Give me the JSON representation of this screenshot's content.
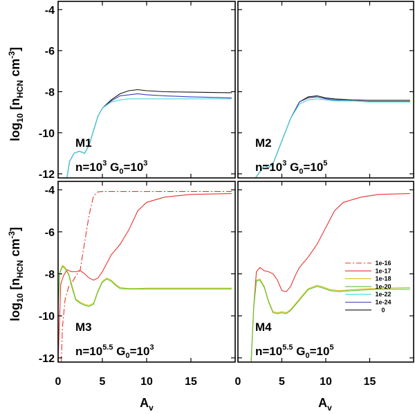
{
  "chart_data": {
    "type": "line",
    "layout": "2x2 shared axes",
    "ylabel": "log10 [nHCN cm-3]",
    "xlabel": "Av",
    "xlim": [
      0,
      20
    ],
    "ylim_top": [
      -12.2,
      -3.6
    ],
    "ylim_bottom": [
      -12.2,
      -3.6
    ],
    "xticks": [
      0,
      5,
      10,
      15
    ],
    "yticks_top": [
      -4,
      -6,
      -8,
      -10,
      -12
    ],
    "yticks_bottom": [
      -4,
      -6,
      -8,
      -10,
      -12
    ],
    "legend_position": "bottom-right panel, right side",
    "legend": [
      {
        "label": "1e-16",
        "color": "#e8332e",
        "dash": "dashdot"
      },
      {
        "label": "1e-17",
        "color": "#e8332e",
        "dash": "solid"
      },
      {
        "label": "1e-18",
        "color": "#d8c010",
        "dash": "solid"
      },
      {
        "label": "1e-20",
        "color": "#5cc13a",
        "dash": "solid"
      },
      {
        "label": "1e-22",
        "color": "#3ed8d8",
        "dash": "solid"
      },
      {
        "label": "1e-24",
        "color": "#3c3cbe",
        "dash": "solid"
      },
      {
        "label": "0",
        "color": "#111111",
        "dash": "solid"
      }
    ],
    "panels": [
      {
        "id": "M1",
        "name": "M1",
        "n_label": "n=10",
        "n_exp": "3",
        "g_label": "G",
        "g_sub": "0",
        "g_eq": "=10",
        "g_exp": "3",
        "series": [
          {
            "name": "0",
            "color": "#111111",
            "dash": "solid",
            "x": [
              1.0,
              1.3,
              1.8,
              2.4,
              3.0,
              3.5,
              4.0,
              4.5,
              5.0,
              6.0,
              7.0,
              8.0,
              9.0,
              10,
              12,
              15,
              18,
              19.6
            ],
            "y": [
              -12.2,
              -11.4,
              -11.0,
              -10.9,
              -11.0,
              -10.6,
              -9.9,
              -9.2,
              -8.8,
              -8.4,
              -8.1,
              -7.95,
              -7.9,
              -7.95,
              -8.0,
              -8.02,
              -8.04,
              -8.05
            ]
          },
          {
            "name": "1e-24",
            "color": "#3c3cbe",
            "dash": "solid",
            "x": [
              1.0,
              1.3,
              1.8,
              2.4,
              3.0,
              3.5,
              4.0,
              4.5,
              5.0,
              6.0,
              7.0,
              8.0,
              9.0,
              10,
              12,
              15,
              18,
              19.6
            ],
            "y": [
              -12.2,
              -11.4,
              -11.0,
              -10.9,
              -11.0,
              -10.6,
              -9.9,
              -9.2,
              -8.8,
              -8.45,
              -8.2,
              -8.15,
              -8.1,
              -8.15,
              -8.2,
              -8.25,
              -8.28,
              -8.3
            ]
          },
          {
            "name": "1e-22",
            "color": "#3ed8d8",
            "dash": "solid",
            "x": [
              1.0,
              1.3,
              1.8,
              2.4,
              3.0,
              3.5,
              4.0,
              4.5,
              5.0,
              6.0,
              7.0,
              8.0,
              9.0,
              10,
              12,
              15,
              18,
              19.6
            ],
            "y": [
              -12.2,
              -11.4,
              -11.0,
              -10.9,
              -11.0,
              -10.6,
              -9.9,
              -9.2,
              -8.8,
              -8.5,
              -8.4,
              -8.35,
              -8.35,
              -8.35,
              -8.35,
              -8.35,
              -8.35,
              -8.35
            ]
          }
        ]
      },
      {
        "id": "M2",
        "name": "M2",
        "n_label": "n=10",
        "n_exp": "3",
        "g_label": "G",
        "g_sub": "0",
        "g_eq": "=10",
        "g_exp": "5",
        "series": [
          {
            "name": "0",
            "color": "#111111",
            "dash": "solid",
            "x": [
              2.0,
              2.5,
              3.0,
              3.5,
              4.0,
              5.0,
              6.0,
              7.0,
              8.0,
              9.0,
              10,
              11,
              13,
              15,
              17,
              19.6
            ],
            "y": [
              -12.2,
              -11.9,
              -11.6,
              -11.7,
              -11.5,
              -10.4,
              -9.3,
              -8.5,
              -8.25,
              -8.2,
              -8.3,
              -8.35,
              -8.4,
              -8.42,
              -8.42,
              -8.42
            ]
          },
          {
            "name": "1e-24",
            "color": "#3c3cbe",
            "dash": "solid",
            "x": [
              2.0,
              2.5,
              3.0,
              3.5,
              4.0,
              5.0,
              6.0,
              7.0,
              8.0,
              9.0,
              10,
              11,
              13,
              15,
              17,
              19.6
            ],
            "y": [
              -12.2,
              -11.9,
              -11.6,
              -11.7,
              -11.5,
              -10.4,
              -9.3,
              -8.5,
              -8.3,
              -8.25,
              -8.35,
              -8.4,
              -8.45,
              -8.48,
              -8.48,
              -8.48
            ]
          },
          {
            "name": "1e-22",
            "color": "#3ed8d8",
            "dash": "solid",
            "x": [
              2.0,
              2.5,
              3.0,
              3.5,
              4.0,
              5.0,
              6.0,
              7.0,
              8.0,
              9.0,
              10,
              11,
              13,
              15,
              17,
              19.6
            ],
            "y": [
              -12.2,
              -11.9,
              -11.6,
              -11.7,
              -11.5,
              -10.4,
              -9.3,
              -8.6,
              -8.4,
              -8.35,
              -8.4,
              -8.45,
              -8.45,
              -8.5,
              -8.5,
              -8.5
            ]
          }
        ]
      },
      {
        "id": "M3",
        "name": "M3",
        "n_label": "n=10",
        "n_exp": "5.5",
        "g_label": "G",
        "g_sub": "0",
        "g_eq": "=10",
        "g_exp": "3",
        "series": [
          {
            "name": "1e-16",
            "color": "#e8332e",
            "dash": "dashdot",
            "x": [
              0.35,
              0.5,
              0.8,
              1.2,
              1.6,
              2.0,
              2.5,
              3.0,
              3.5,
              4.0,
              4.5,
              5.0,
              6.0,
              8.0,
              12,
              16,
              19.6
            ],
            "y": [
              -12.2,
              -10.5,
              -9.2,
              -8.6,
              -8.4,
              -8.1,
              -7.8,
              -6.5,
              -5.2,
              -4.3,
              -4.1,
              -4.08,
              -4.08,
              -4.08,
              -4.08,
              -4.08,
              -4.08
            ]
          },
          {
            "name": "1e-17",
            "color": "#e8332e",
            "dash": "solid",
            "x": [
              0.0,
              0.3,
              0.6,
              1.0,
              1.5,
              2.0,
              2.5,
              3.0,
              3.5,
              4.0,
              4.5,
              5.0,
              5.5,
              6.0,
              7.0,
              8.0,
              9.0,
              10,
              12,
              15,
              19.6
            ],
            "y": [
              -12.2,
              -8.5,
              -8.1,
              -7.8,
              -7.9,
              -7.9,
              -7.85,
              -8.0,
              -8.2,
              -8.3,
              -8.2,
              -7.9,
              -7.5,
              -7.1,
              -6.6,
              -5.9,
              -5.0,
              -4.6,
              -4.35,
              -4.22,
              -4.18
            ]
          },
          {
            "name": "1e-18",
            "color": "#d8c010",
            "dash": "solid",
            "x": [
              0.0,
              0.2,
              0.5,
              0.8,
              1.2,
              1.6,
              2.0,
              2.5,
              3.0,
              3.5,
              4.0,
              4.5,
              5.0,
              5.5,
              6.0,
              6.5,
              7.0,
              8.0,
              9.0,
              10,
              12,
              15,
              19.6
            ],
            "y": [
              -9.5,
              -7.9,
              -7.6,
              -7.7,
              -8.0,
              -8.6,
              -9.2,
              -9.35,
              -9.45,
              -9.5,
              -9.4,
              -8.8,
              -8.35,
              -8.2,
              -8.3,
              -8.5,
              -8.65,
              -8.7,
              -8.7,
              -8.68,
              -8.68,
              -8.68,
              -8.68
            ]
          },
          {
            "name": "1e-20",
            "color": "#5cc13a",
            "dash": "solid",
            "x": [
              0.0,
              0.2,
              0.5,
              0.8,
              1.2,
              1.6,
              2.0,
              2.5,
              3.0,
              3.5,
              4.0,
              4.5,
              5.0,
              5.5,
              6.0,
              6.5,
              7.0,
              8.0,
              9.0,
              10,
              12,
              15,
              19.6
            ],
            "y": [
              -9.6,
              -7.95,
              -7.65,
              -7.75,
              -8.05,
              -8.7,
              -9.25,
              -9.4,
              -9.5,
              -9.55,
              -9.45,
              -8.85,
              -8.4,
              -8.25,
              -8.35,
              -8.55,
              -8.7,
              -8.72,
              -8.72,
              -8.72,
              -8.72,
              -8.72,
              -8.72
            ]
          }
        ]
      },
      {
        "id": "M4",
        "name": "M4",
        "n_label": "n=10",
        "n_exp": "5.5",
        "g_label": "G",
        "g_sub": "0",
        "g_eq": "=10",
        "g_exp": "5",
        "series": [
          {
            "name": "1e-17",
            "color": "#e8332e",
            "dash": "solid",
            "x": [
              1.5,
              1.8,
              2.1,
              2.5,
              3.0,
              3.5,
              4.0,
              4.5,
              5.0,
              5.5,
              6.0,
              6.5,
              7.0,
              8.0,
              9.0,
              10,
              11,
              12,
              14,
              16,
              19.6
            ],
            "y": [
              -12.2,
              -9.5,
              -7.9,
              -7.7,
              -7.85,
              -7.9,
              -8.0,
              -8.3,
              -8.8,
              -8.85,
              -8.6,
              -8.1,
              -7.7,
              -7.2,
              -6.6,
              -5.8,
              -5.0,
              -4.6,
              -4.35,
              -4.22,
              -4.18
            ]
          },
          {
            "name": "1e-18",
            "color": "#d8c010",
            "dash": "solid",
            "x": [
              1.5,
              1.8,
              2.1,
              2.5,
              3.0,
              3.5,
              4.0,
              4.5,
              5.0,
              5.5,
              6.0,
              7.0,
              8.0,
              9.0,
              9.5,
              10.5,
              11.5,
              13,
              15,
              19.6
            ],
            "y": [
              -12.2,
              -9.5,
              -8.3,
              -8.25,
              -8.6,
              -9.3,
              -9.8,
              -9.85,
              -9.8,
              -9.85,
              -9.7,
              -9.2,
              -8.7,
              -8.55,
              -8.6,
              -8.75,
              -8.8,
              -8.75,
              -8.7,
              -8.65
            ]
          },
          {
            "name": "1e-20",
            "color": "#5cc13a",
            "dash": "solid",
            "x": [
              1.5,
              1.8,
              2.1,
              2.5,
              3.0,
              3.5,
              4.0,
              4.5,
              5.0,
              5.5,
              6.0,
              7.0,
              8.0,
              9.0,
              9.5,
              10.5,
              11.5,
              13,
              15,
              19.6
            ],
            "y": [
              -12.2,
              -9.6,
              -8.35,
              -8.3,
              -8.65,
              -9.35,
              -9.85,
              -9.9,
              -9.85,
              -9.9,
              -9.75,
              -9.25,
              -8.75,
              -8.6,
              -8.65,
              -8.8,
              -8.85,
              -8.8,
              -8.75,
              -8.72
            ]
          }
        ]
      }
    ]
  }
}
